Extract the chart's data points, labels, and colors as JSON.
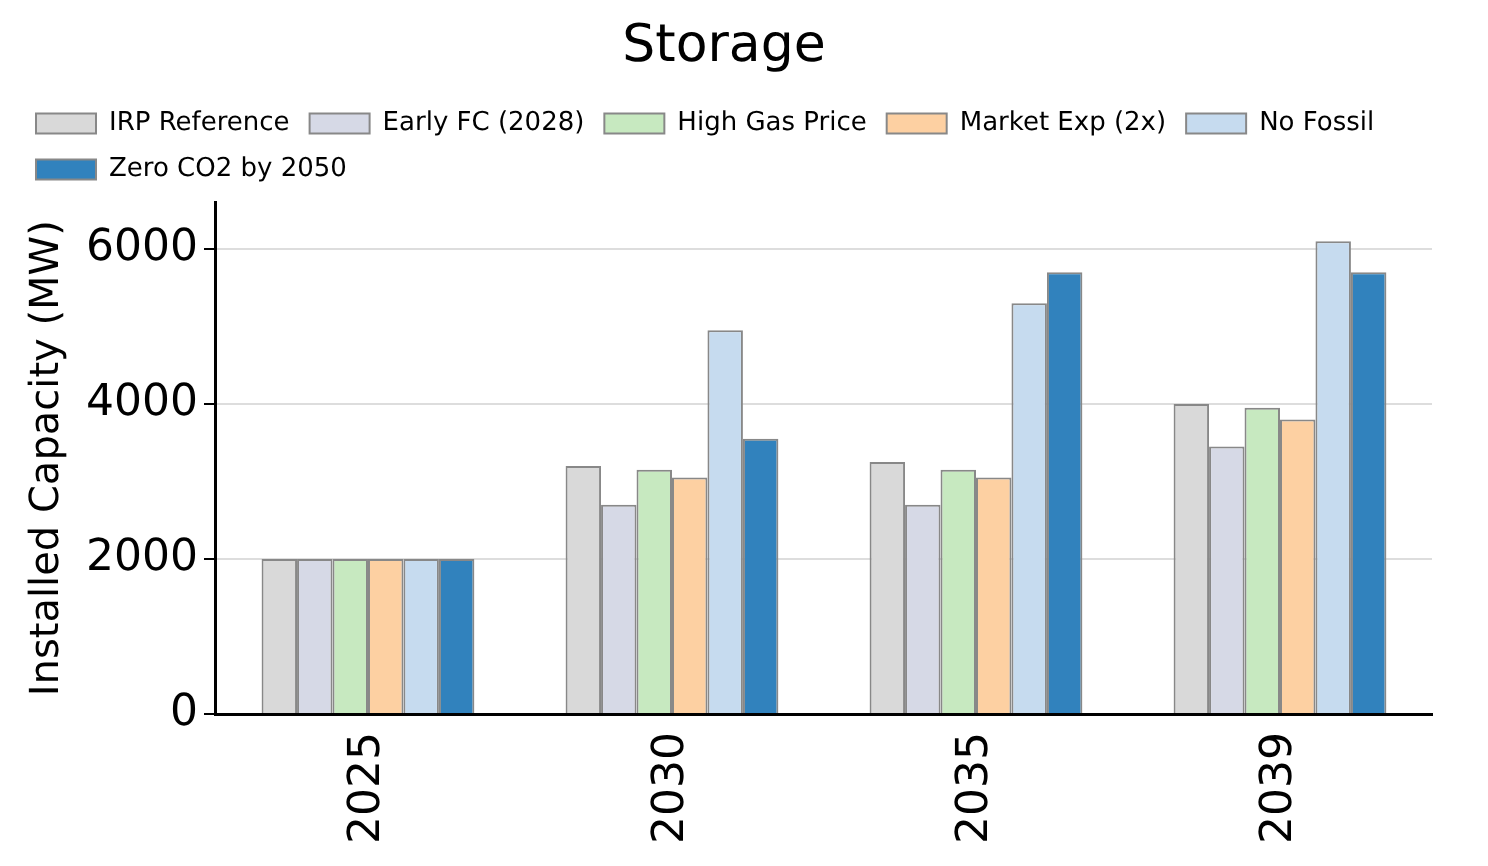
{
  "chart_data": {
    "type": "bar",
    "title": "Storage",
    "ylabel": "Installed Capacity (MW)",
    "categories": [
      "2025",
      "2030",
      "2035",
      "2039"
    ],
    "series": [
      {
        "name": "IRP Reference",
        "color": "#d9d9d9",
        "values": [
          2000,
          3200,
          3250,
          4000
        ]
      },
      {
        "name": "Early FC (2028)",
        "color": "#d6d9e6",
        "values": [
          2000,
          2700,
          2700,
          3450
        ]
      },
      {
        "name": "High Gas Price",
        "color": "#c7e9c0",
        "values": [
          2000,
          3150,
          3150,
          3950
        ]
      },
      {
        "name": "Market Exp (2x)",
        "color": "#fdd0a2",
        "values": [
          2000,
          3050,
          3050,
          3800
        ]
      },
      {
        "name": "No Fossil",
        "color": "#c6dbef",
        "values": [
          2000,
          4950,
          5300,
          6100
        ]
      },
      {
        "name": "Zero CO2 by 2050",
        "color": "#3182bd",
        "values": [
          2000,
          3550,
          5700,
          5700
        ]
      }
    ],
    "ylim": [
      0,
      6600
    ],
    "yticks": [
      0,
      2000,
      4000,
      6000
    ],
    "grid": "y",
    "legend": "top left"
  }
}
